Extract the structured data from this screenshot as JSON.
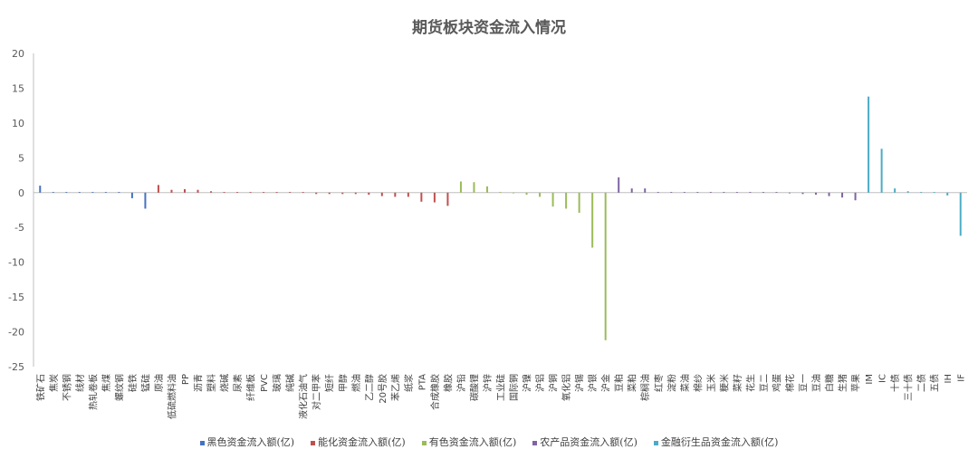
{
  "chart_data": {
    "type": "bar",
    "title": "期货板块资金流入情况",
    "ylim": [
      -25,
      20
    ],
    "yticks": [
      20,
      15,
      10,
      5,
      0,
      -5,
      -10,
      -15,
      -20,
      -25
    ],
    "grid": false,
    "legend_position": "bottom",
    "categories": [
      "铁矿石",
      "焦炭",
      "不锈钢",
      "线材",
      "热轧卷板",
      "焦煤",
      "螺纹钢",
      "硅铁",
      "锰硅",
      "原油",
      "低硫燃料油",
      "PP",
      "沥青",
      "塑料",
      "烧碱",
      "尿素",
      "纤维板",
      "PVC",
      "玻璃",
      "纯碱",
      "液化石油气",
      "对二甲苯",
      "短纤",
      "甲醇",
      "燃油",
      "乙二醇",
      "20号胶",
      "苯乙烯",
      "纸浆",
      "PTA",
      "合成橡胶",
      "橡胶",
      "沪铅",
      "碳酸锂",
      "沪锌",
      "工业硅",
      "国际铜",
      "沪镍",
      "沪铝",
      "沪铜",
      "氧化铝",
      "沪锡",
      "沪银",
      "沪金",
      "豆粕",
      "菜粕",
      "棕榈油",
      "红枣",
      "淀粉",
      "菜油",
      "棉纱",
      "玉米",
      "粳米",
      "菜籽",
      "花生",
      "豆二",
      "鸡蛋",
      "棉花",
      "豆一",
      "豆油",
      "白糖",
      "生猪",
      "苹果",
      "IM",
      "IC",
      "十债",
      "三十债",
      "二债",
      "五债",
      "IH",
      "IF"
    ],
    "series": [
      {
        "name": "黑色资金流入额(亿)",
        "color": "#4472C4",
        "values": [
          1.0,
          0.1,
          0.1,
          0.0,
          0.0,
          0.0,
          0.0,
          -0.8,
          -2.3,
          null,
          null,
          null,
          null,
          null,
          null,
          null,
          null,
          null,
          null,
          null,
          null,
          null,
          null,
          null,
          null,
          null,
          null,
          null,
          null,
          null,
          null,
          null,
          null,
          null,
          null,
          null,
          null,
          null,
          null,
          null,
          null,
          null,
          null,
          null,
          null,
          null,
          null,
          null,
          null,
          null,
          null,
          null,
          null,
          null,
          null,
          null,
          null,
          null,
          null,
          null,
          null,
          null,
          null,
          null,
          null,
          null,
          null,
          null,
          null,
          null,
          null
        ]
      },
      {
        "name": "能化资金流入额(亿)",
        "color": "#C0504D",
        "values": [
          null,
          null,
          null,
          null,
          null,
          null,
          null,
          null,
          null,
          1.1,
          0.4,
          0.5,
          0.4,
          0.2,
          0.0,
          0.0,
          0.0,
          0.0,
          0.0,
          0.0,
          0.0,
          -0.2,
          -0.2,
          -0.2,
          -0.2,
          -0.3,
          -0.5,
          -0.6,
          -0.6,
          -1.3,
          -1.4,
          -1.9,
          null,
          null,
          null,
          null,
          null,
          null,
          null,
          null,
          null,
          null,
          null,
          null,
          null,
          null,
          null,
          null,
          null,
          null,
          null,
          null,
          null,
          null,
          null,
          null,
          null,
          null,
          null,
          null,
          null,
          null,
          null,
          null,
          null,
          null,
          null,
          null,
          null,
          null,
          null
        ]
      },
      {
        "name": "有色资金流入额(亿)",
        "color": "#9BBB59",
        "values": [
          null,
          null,
          null,
          null,
          null,
          null,
          null,
          null,
          null,
          null,
          null,
          null,
          null,
          null,
          null,
          null,
          null,
          null,
          null,
          null,
          null,
          null,
          null,
          null,
          null,
          null,
          null,
          null,
          null,
          null,
          null,
          null,
          1.6,
          1.5,
          0.9,
          0.0,
          -0.1,
          -0.3,
          -0.6,
          -2.0,
          -2.3,
          -2.9,
          -7.9,
          -21.2,
          null,
          null,
          null,
          null,
          null,
          null,
          null,
          null,
          null,
          null,
          null,
          null,
          null,
          null,
          null,
          null,
          null,
          null,
          null,
          null,
          null,
          null,
          null,
          null,
          null,
          null,
          null
        ]
      },
      {
        "name": "农产品资金流入额(亿)",
        "color": "#8064A2",
        "values": [
          null,
          null,
          null,
          null,
          null,
          null,
          null,
          null,
          null,
          null,
          null,
          null,
          null,
          null,
          null,
          null,
          null,
          null,
          null,
          null,
          null,
          null,
          null,
          null,
          null,
          null,
          null,
          null,
          null,
          null,
          null,
          null,
          null,
          null,
          null,
          null,
          null,
          null,
          null,
          null,
          null,
          null,
          null,
          null,
          2.2,
          0.6,
          0.6,
          0.1,
          0.0,
          0.0,
          0.0,
          0.0,
          0.0,
          0.0,
          0.0,
          0.0,
          0.0,
          -0.1,
          -0.2,
          -0.3,
          -0.5,
          -0.7,
          -1.1,
          null,
          null,
          null,
          null,
          null,
          null,
          null,
          null
        ]
      },
      {
        "name": "金融衍生品资金流入额(亿)",
        "color": "#4BACC6",
        "values": [
          null,
          null,
          null,
          null,
          null,
          null,
          null,
          null,
          null,
          null,
          null,
          null,
          null,
          null,
          null,
          null,
          null,
          null,
          null,
          null,
          null,
          null,
          null,
          null,
          null,
          null,
          null,
          null,
          null,
          null,
          null,
          null,
          null,
          null,
          null,
          null,
          null,
          null,
          null,
          null,
          null,
          null,
          null,
          null,
          null,
          null,
          null,
          null,
          null,
          null,
          null,
          null,
          null,
          null,
          null,
          null,
          null,
          null,
          null,
          null,
          null,
          null,
          null,
          13.8,
          6.3,
          0.6,
          0.2,
          0.1,
          0.0,
          -0.4,
          -6.2
        ]
      }
    ]
  }
}
